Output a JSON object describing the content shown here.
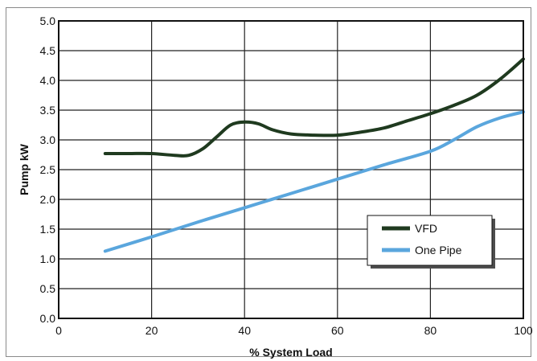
{
  "chart_data": {
    "type": "line",
    "title": "",
    "xlabel": "% System Load",
    "ylabel": "Pump kW",
    "xlim": [
      0,
      100
    ],
    "ylim": [
      0.0,
      5.0
    ],
    "x_ticks": [
      "0",
      "20",
      "40",
      "60",
      "80",
      "100"
    ],
    "y_ticks": [
      "0.0",
      "0.5",
      "1.0",
      "1.5",
      "2.0",
      "2.5",
      "3.0",
      "3.5",
      "4.0",
      "4.5",
      "5.0"
    ],
    "grid": true,
    "legend_position": "lower-right",
    "series": [
      {
        "name": "VFD",
        "color": "#1f3a1f",
        "x": [
          10,
          15,
          20,
          25,
          28,
          31,
          34,
          37,
          40,
          43,
          46,
          50,
          55,
          60,
          65,
          70,
          75,
          80,
          85,
          90,
          95,
          100
        ],
        "y": [
          2.77,
          2.77,
          2.77,
          2.74,
          2.74,
          2.85,
          3.05,
          3.25,
          3.3,
          3.27,
          3.17,
          3.1,
          3.08,
          3.08,
          3.13,
          3.2,
          3.32,
          3.44,
          3.58,
          3.75,
          4.02,
          4.36
        ]
      },
      {
        "name": "One Pipe",
        "color": "#5aa6dd",
        "x": [
          10,
          20,
          30,
          40,
          50,
          60,
          70,
          80,
          85,
          90,
          95,
          100
        ],
        "y": [
          1.13,
          1.37,
          1.62,
          1.86,
          2.1,
          2.34,
          2.58,
          2.81,
          3.0,
          3.22,
          3.37,
          3.47
        ]
      }
    ]
  }
}
